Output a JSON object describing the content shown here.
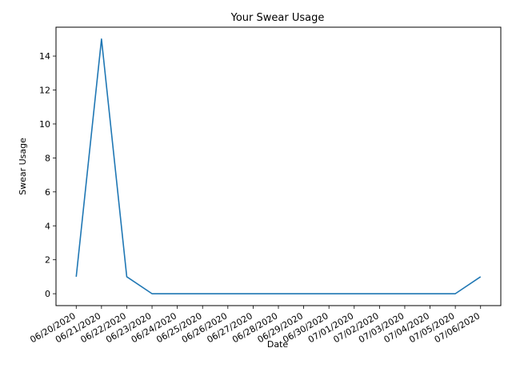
{
  "chart_data": {
    "type": "line",
    "title": "Your Swear Usage",
    "xlabel": "Date",
    "ylabel": "Swear Usage",
    "x": [
      "06/20/2020",
      "06/21/2020",
      "06/22/2020",
      "06/23/2020",
      "06/24/2020",
      "06/25/2020",
      "06/26/2020",
      "06/27/2020",
      "06/28/2020",
      "06/29/2020",
      "06/30/2020",
      "07/01/2020",
      "07/02/2020",
      "07/03/2020",
      "07/04/2020",
      "07/05/2020",
      "07/06/2020"
    ],
    "values": [
      1,
      15,
      1,
      0,
      0,
      0,
      0,
      0,
      0,
      0,
      0,
      0,
      0,
      0,
      0,
      0,
      1
    ],
    "yticks": [
      "0",
      "2",
      "4",
      "6",
      "8",
      "10",
      "12",
      "14"
    ],
    "ylim": [
      -0.7,
      15.7
    ],
    "grid": false,
    "line_color": "#1f77b4"
  }
}
